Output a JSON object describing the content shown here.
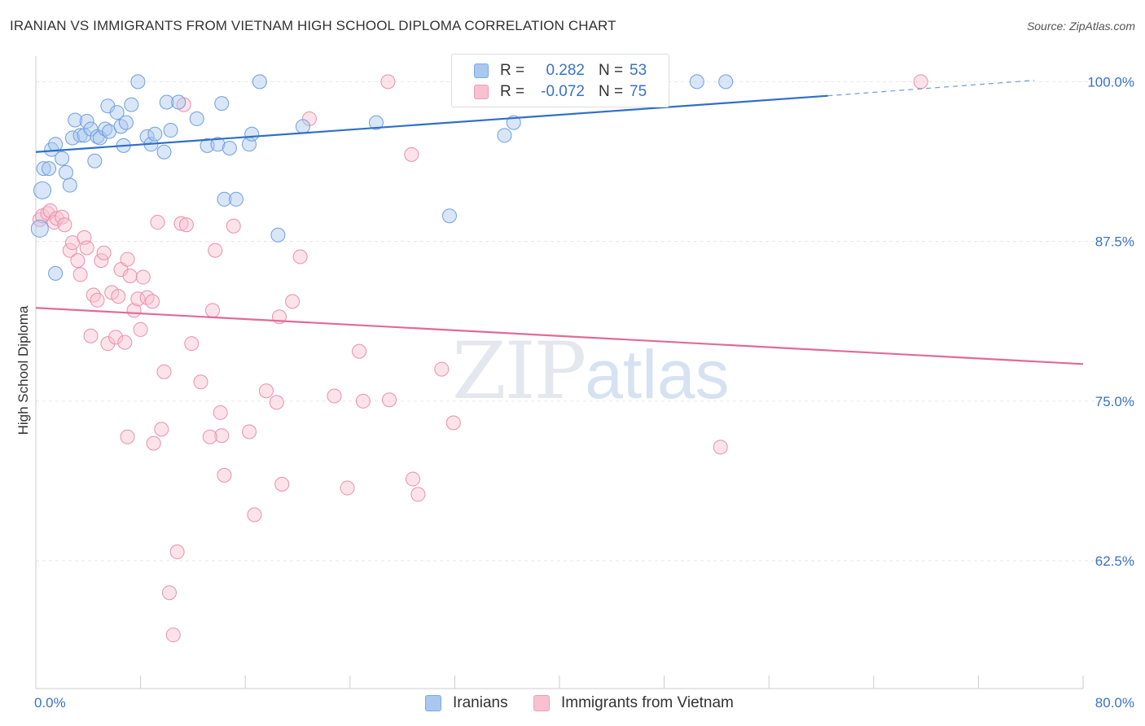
{
  "title": "IRANIAN VS IMMIGRANTS FROM VIETNAM HIGH SCHOOL DIPLOMA CORRELATION CHART",
  "source": "Source: ZipAtlas.com",
  "watermark": {
    "zip": "ZIP",
    "atlas": "atlas"
  },
  "legend": {
    "rows": [
      {
        "r_label": "R =",
        "r_value": "0.282",
        "n_label": "N =",
        "n_value": "53",
        "color": "#a8c8f0",
        "border": "#7aaae0"
      },
      {
        "r_label": "R =",
        "r_value": "-0.072",
        "n_label": "N =",
        "n_value": "75",
        "color": "#f8c0d0",
        "border": "#eea0b8"
      }
    ]
  },
  "bottom_legend": [
    {
      "label": "Iranians",
      "color": "#a8c8f0",
      "border": "#7aaae0"
    },
    {
      "label": "Immigrants from Vietnam",
      "color": "#f8c0d0",
      "border": "#eea0b8"
    }
  ],
  "colors": {
    "iranians_fill": "rgba(168,200,240,0.45)",
    "iranians_stroke": "#6f9fdc",
    "iranians_line": "#2f6fc8",
    "vietnam_fill": "rgba(248,192,208,0.45)",
    "vietnam_stroke": "#e98fae",
    "vietnam_line": "#e26a96",
    "grid": "#e6e6e6",
    "tick_label": "#3a72c4"
  },
  "chart_data": {
    "type": "scatter",
    "title": "IRANIAN VS IMMIGRANTS FROM VIETNAM HIGH SCHOOL DIPLOMA CORRELATION CHART",
    "xlabel": "",
    "ylabel": "High School Diploma",
    "xlim": [
      0,
      80
    ],
    "ylim": [
      52.5,
      102.0
    ],
    "x_tick_labels": [
      "0.0%",
      "80.0%"
    ],
    "y_ticks": [
      62.5,
      75.0,
      87.5,
      100.0
    ],
    "y_tick_labels": [
      "62.5%",
      "75.0%",
      "87.5%",
      "100.0%"
    ],
    "grid": "horizontal dashed",
    "legend_placement": "top-center",
    "series": [
      {
        "name": "Iranians",
        "R": 0.282,
        "N": 53,
        "trend": {
          "x": [
            0,
            60.5
          ],
          "y": [
            94.5,
            98.9
          ],
          "dashed_extension": {
            "x": [
              60.5,
              80
            ],
            "y": [
              98.9,
              100.3
            ]
          }
        },
        "points": [
          {
            "x": 0.5,
            "y": 91.5
          },
          {
            "x": 0.6,
            "y": 93.2
          },
          {
            "x": 1.0,
            "y": 93.2
          },
          {
            "x": 1.2,
            "y": 94.7
          },
          {
            "x": 1.5,
            "y": 95.1
          },
          {
            "x": 2.0,
            "y": 94.0
          },
          {
            "x": 2.3,
            "y": 92.9
          },
          {
            "x": 2.6,
            "y": 91.9
          },
          {
            "x": 2.8,
            "y": 95.6
          },
          {
            "x": 3.0,
            "y": 97.0
          },
          {
            "x": 3.4,
            "y": 95.8
          },
          {
            "x": 3.7,
            "y": 95.8
          },
          {
            "x": 3.9,
            "y": 96.9
          },
          {
            "x": 4.2,
            "y": 96.3
          },
          {
            "x": 4.5,
            "y": 93.8
          },
          {
            "x": 4.7,
            "y": 95.7
          },
          {
            "x": 4.9,
            "y": 95.6
          },
          {
            "x": 5.3,
            "y": 96.3
          },
          {
            "x": 5.5,
            "y": 98.1
          },
          {
            "x": 5.6,
            "y": 96.1
          },
          {
            "x": 6.2,
            "y": 97.6
          },
          {
            "x": 6.5,
            "y": 96.5
          },
          {
            "x": 6.7,
            "y": 95.0
          },
          {
            "x": 6.9,
            "y": 96.8
          },
          {
            "x": 7.3,
            "y": 98.2
          },
          {
            "x": 7.8,
            "y": 100.0
          },
          {
            "x": 8.5,
            "y": 95.7
          },
          {
            "x": 8.8,
            "y": 95.1
          },
          {
            "x": 9.1,
            "y": 95.9
          },
          {
            "x": 9.8,
            "y": 94.5
          },
          {
            "x": 10.0,
            "y": 98.4
          },
          {
            "x": 10.3,
            "y": 96.2
          },
          {
            "x": 10.9,
            "y": 98.4
          },
          {
            "x": 12.3,
            "y": 97.1
          },
          {
            "x": 13.1,
            "y": 95.0
          },
          {
            "x": 13.9,
            "y": 95.1
          },
          {
            "x": 14.2,
            "y": 98.3
          },
          {
            "x": 14.4,
            "y": 90.8
          },
          {
            "x": 14.8,
            "y": 94.8
          },
          {
            "x": 15.3,
            "y": 90.8
          },
          {
            "x": 16.3,
            "y": 95.1
          },
          {
            "x": 16.5,
            "y": 95.9
          },
          {
            "x": 17.1,
            "y": 100.0
          },
          {
            "x": 18.5,
            "y": 88.0
          },
          {
            "x": 20.4,
            "y": 96.5
          },
          {
            "x": 26.0,
            "y": 96.8
          },
          {
            "x": 31.6,
            "y": 89.5
          },
          {
            "x": 35.8,
            "y": 95.8
          },
          {
            "x": 36.5,
            "y": 96.8
          },
          {
            "x": 50.5,
            "y": 100.0
          },
          {
            "x": 52.7,
            "y": 100.0
          },
          {
            "x": 1.5,
            "y": 85.0
          },
          {
            "x": 0.3,
            "y": 88.5
          }
        ]
      },
      {
        "name": "Immigrants from Vietnam",
        "R": -0.072,
        "N": 75,
        "trend": {
          "x": [
            0,
            80
          ],
          "y": [
            82.3,
            77.9
          ]
        },
        "points": [
          {
            "x": 0.3,
            "y": 89.2
          },
          {
            "x": 0.5,
            "y": 89.5
          },
          {
            "x": 0.9,
            "y": 89.7
          },
          {
            "x": 1.1,
            "y": 89.9
          },
          {
            "x": 1.4,
            "y": 89.0
          },
          {
            "x": 1.6,
            "y": 89.3
          },
          {
            "x": 2.0,
            "y": 89.4
          },
          {
            "x": 2.2,
            "y": 88.8
          },
          {
            "x": 2.6,
            "y": 86.8
          },
          {
            "x": 2.8,
            "y": 87.4
          },
          {
            "x": 3.2,
            "y": 86.0
          },
          {
            "x": 3.4,
            "y": 84.9
          },
          {
            "x": 3.7,
            "y": 87.8
          },
          {
            "x": 3.9,
            "y": 87.0
          },
          {
            "x": 4.2,
            "y": 80.1
          },
          {
            "x": 4.4,
            "y": 83.3
          },
          {
            "x": 4.7,
            "y": 82.9
          },
          {
            "x": 5.0,
            "y": 86.0
          },
          {
            "x": 5.2,
            "y": 86.6
          },
          {
            "x": 5.5,
            "y": 79.5
          },
          {
            "x": 5.8,
            "y": 83.5
          },
          {
            "x": 6.1,
            "y": 80.0
          },
          {
            "x": 6.3,
            "y": 83.2
          },
          {
            "x": 6.5,
            "y": 85.3
          },
          {
            "x": 6.8,
            "y": 79.6
          },
          {
            "x": 7.0,
            "y": 86.1
          },
          {
            "x": 7.2,
            "y": 84.8
          },
          {
            "x": 7.5,
            "y": 82.1
          },
          {
            "x": 7.8,
            "y": 83.0
          },
          {
            "x": 8.0,
            "y": 80.6
          },
          {
            "x": 8.2,
            "y": 84.7
          },
          {
            "x": 8.5,
            "y": 83.1
          },
          {
            "x": 8.9,
            "y": 82.8
          },
          {
            "x": 9.0,
            "y": 71.7
          },
          {
            "x": 9.3,
            "y": 89.0
          },
          {
            "x": 9.6,
            "y": 72.8
          },
          {
            "x": 9.8,
            "y": 77.3
          },
          {
            "x": 10.2,
            "y": 60.0
          },
          {
            "x": 10.5,
            "y": 56.7
          },
          {
            "x": 10.8,
            "y": 63.2
          },
          {
            "x": 11.1,
            "y": 88.9
          },
          {
            "x": 11.3,
            "y": 98.2
          },
          {
            "x": 11.5,
            "y": 88.8
          },
          {
            "x": 11.9,
            "y": 79.5
          },
          {
            "x": 12.6,
            "y": 76.5
          },
          {
            "x": 13.5,
            "y": 82.1
          },
          {
            "x": 13.7,
            "y": 86.8
          },
          {
            "x": 14.1,
            "y": 74.1
          },
          {
            "x": 14.2,
            "y": 72.3
          },
          {
            "x": 14.4,
            "y": 69.2
          },
          {
            "x": 15.1,
            "y": 88.7
          },
          {
            "x": 16.3,
            "y": 72.6
          },
          {
            "x": 16.7,
            "y": 66.1
          },
          {
            "x": 17.6,
            "y": 75.8
          },
          {
            "x": 18.4,
            "y": 74.9
          },
          {
            "x": 18.6,
            "y": 81.6
          },
          {
            "x": 18.8,
            "y": 68.5
          },
          {
            "x": 19.6,
            "y": 82.8
          },
          {
            "x": 20.2,
            "y": 86.3
          },
          {
            "x": 20.9,
            "y": 97.1
          },
          {
            "x": 22.8,
            "y": 75.4
          },
          {
            "x": 23.8,
            "y": 68.2
          },
          {
            "x": 24.7,
            "y": 78.9
          },
          {
            "x": 25.0,
            "y": 75.0
          },
          {
            "x": 26.9,
            "y": 100.0
          },
          {
            "x": 27.0,
            "y": 75.1
          },
          {
            "x": 28.7,
            "y": 94.3
          },
          {
            "x": 28.8,
            "y": 68.9
          },
          {
            "x": 29.2,
            "y": 67.7
          },
          {
            "x": 31.0,
            "y": 77.5
          },
          {
            "x": 31.9,
            "y": 73.3
          },
          {
            "x": 52.3,
            "y": 71.4
          },
          {
            "x": 67.6,
            "y": 100.0
          },
          {
            "x": 13.3,
            "y": 72.2
          },
          {
            "x": 7.0,
            "y": 72.2
          }
        ]
      }
    ]
  }
}
